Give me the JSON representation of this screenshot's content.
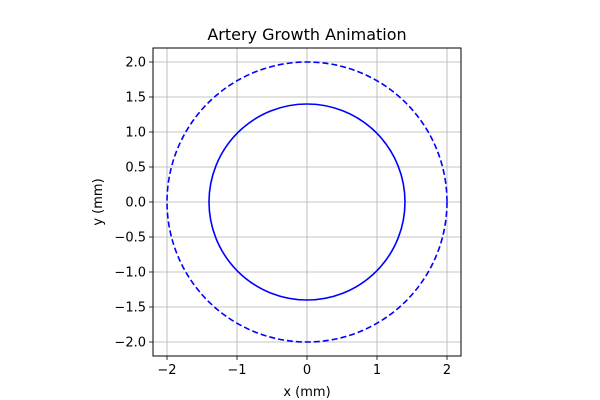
{
  "chart_data": {
    "type": "line",
    "title": "Artery Growth Animation",
    "xlabel": "x (mm)",
    "ylabel": "y (mm)",
    "xlim": [
      -2.2,
      2.2
    ],
    "ylim": [
      -2.2,
      2.2
    ],
    "aspect": "equal",
    "grid": true,
    "x_ticks": [
      -2,
      -1,
      0,
      1,
      2
    ],
    "x_tick_labels": [
      "−2",
      "−1",
      "0",
      "1",
      "2"
    ],
    "y_ticks": [
      -2.0,
      -1.5,
      -1.0,
      -0.5,
      0.0,
      0.5,
      1.0,
      1.5,
      2.0
    ],
    "y_tick_labels": [
      "−2.0",
      "−1.5",
      "−1.0",
      "−0.5",
      "0.0",
      "0.5",
      "1.0",
      "1.5",
      "2.0"
    ],
    "series": [
      {
        "shape": "circle",
        "center": [
          0,
          0
        ],
        "radius": 1.4,
        "color": "#0000ff",
        "linestyle": "solid"
      },
      {
        "shape": "circle",
        "center": [
          0,
          0
        ],
        "radius": 2.0,
        "color": "#0000ff",
        "linestyle": "dashed"
      }
    ]
  }
}
